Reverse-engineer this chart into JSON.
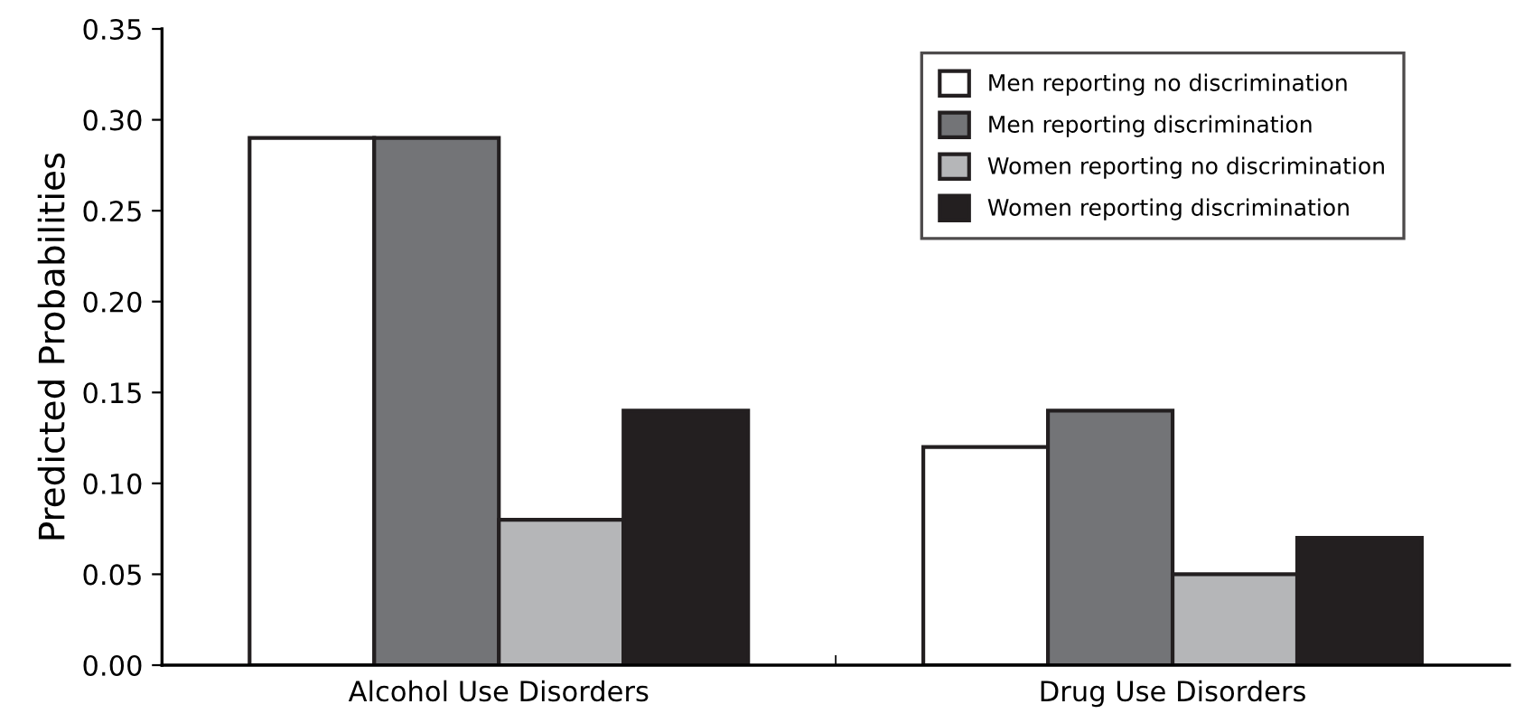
{
  "chart_data": {
    "type": "bar",
    "ylabel": "Predicted Probabilities",
    "categories": [
      "Alcohol Use Disorders",
      "Drug Use Disorders"
    ],
    "series": [
      {
        "name": "Men reporting no discrimination",
        "color": "#ffffff",
        "values": [
          0.29,
          0.12
        ]
      },
      {
        "name": "Men reporting discrimination",
        "color": "#737477",
        "values": [
          0.29,
          0.14
        ]
      },
      {
        "name": "Women reporting no discrimination",
        "color": "#b5b6b8",
        "values": [
          0.08,
          0.05
        ]
      },
      {
        "name": "Women reporting discrimination",
        "color": "#231f20",
        "values": [
          0.14,
          0.07
        ]
      }
    ],
    "ylim": [
      0,
      0.35
    ],
    "yticks": [
      {
        "value": 0,
        "label": "0.00"
      },
      {
        "value": 0.05,
        "label": "0.05"
      },
      {
        "value": 0.1,
        "label": "0.10"
      },
      {
        "value": 0.15,
        "label": "0.15"
      },
      {
        "value": 0.2,
        "label": "0.20"
      },
      {
        "value": 0.25,
        "label": "0.25"
      },
      {
        "value": 0.3,
        "label": "0.30"
      },
      {
        "value": 0.35,
        "label": "0.35"
      }
    ],
    "grid": false,
    "legend": "top right"
  }
}
